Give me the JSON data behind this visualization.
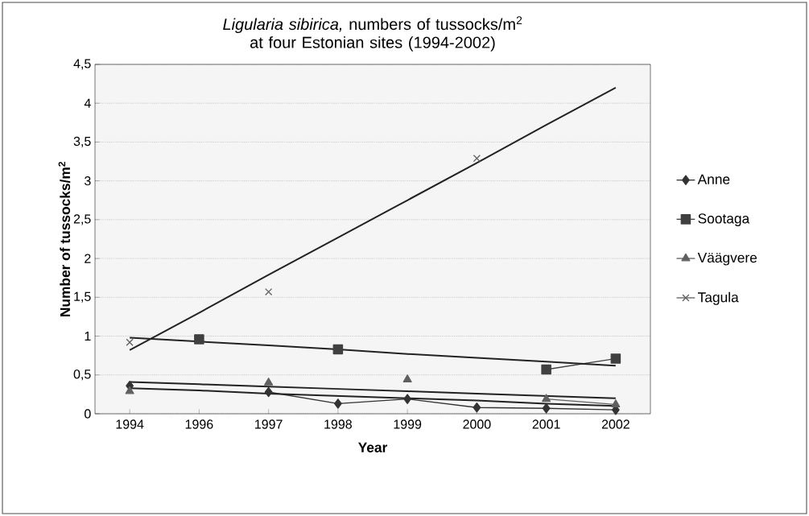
{
  "chart_data": {
    "type": "line",
    "title": "*Ligularia sibirica,* numbers of tussocks/m$^{2}$ at four Estonian sites (1994-2002)",
    "xlabel": "Year",
    "ylabel": "Number of tussocks/m$^{2}$",
    "categories": [
      "1994",
      "1996",
      "1997",
      "1998",
      "1999",
      "2000",
      "2001",
      "2002"
    ],
    "ylim": [
      0,
      4.5
    ],
    "yticks": [
      0,
      {
        "value": 0.5,
        "label": "0,5"
      },
      1,
      {
        "value": 1.5,
        "label": "1,5"
      },
      2,
      {
        "value": 2.5,
        "label": "2,5"
      },
      3,
      {
        "value": 3.5,
        "label": "3,5"
      },
      4,
      {
        "value": 4.5,
        "label": "4,5"
      }
    ],
    "grid": "y",
    "legend": "right",
    "series": [
      {
        "name": "Anne",
        "color": "#333333",
        "marker": "diamond",
        "values": [
          0.36,
          null,
          0.28,
          0.13,
          0.19,
          0.08,
          0.07,
          0.05
        ]
      },
      {
        "name": "Sootaga",
        "color": "#404040",
        "marker": "square",
        "values": [
          null,
          0.96,
          null,
          0.83,
          null,
          null,
          0.57,
          0.71
        ]
      },
      {
        "name": "Väägvere",
        "color": "#606060",
        "marker": "triangle",
        "values": [
          0.29,
          null,
          0.4,
          null,
          0.44,
          null,
          0.19,
          0.12
        ]
      },
      {
        "name": "Tagula",
        "color": "#606060",
        "marker": "cross",
        "values": [
          0.92,
          null,
          1.57,
          null,
          null,
          3.29,
          null,
          null
        ]
      },
      {
        "type": "line",
        "color": "#222222",
        "marker": "none",
        "values": [
          0.33,
          0.3,
          0.26,
          0.23,
          0.2,
          0.17,
          0.13,
          0.1
        ]
      },
      {
        "type": "line",
        "color": "#222222",
        "marker": "none",
        "values": [
          0.98,
          0.93,
          0.88,
          0.83,
          0.77,
          0.72,
          0.67,
          0.62
        ]
      },
      {
        "type": "line",
        "color": "#222222",
        "marker": "none",
        "values": [
          0.41,
          0.38,
          0.35,
          0.32,
          0.29,
          0.26,
          0.23,
          0.2
        ]
      },
      {
        "type": "line",
        "color": "#222222",
        "marker": "none",
        "values": [
          0.82,
          1.3,
          1.79,
          2.27,
          2.75,
          3.23,
          3.72,
          4.2
        ]
      }
    ]
  }
}
